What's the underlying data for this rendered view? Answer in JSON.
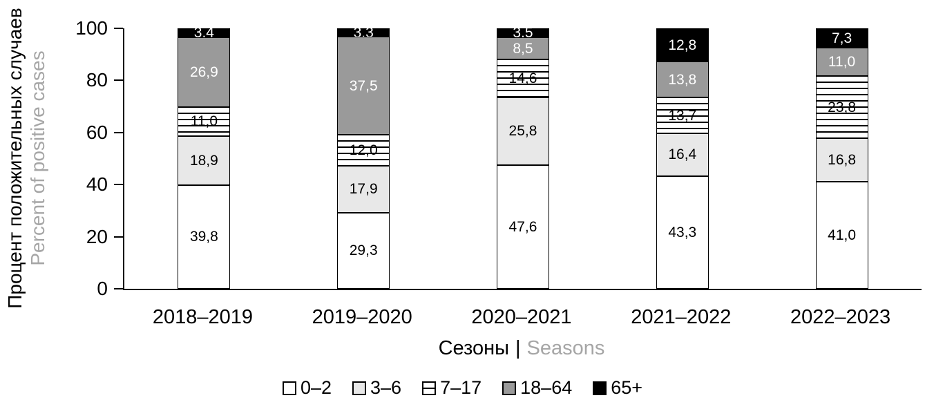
{
  "chart_data": {
    "type": "bar",
    "stacked": true,
    "title": "",
    "categories": [
      "2018–2019",
      "2019–2020",
      "2020–2021",
      "2021–2022",
      "2022–2023"
    ],
    "series": [
      {
        "name": "0–2",
        "swatch": "white",
        "label_color": "#000000",
        "values": [
          39.8,
          29.3,
          47.6,
          43.3,
          41.0
        ],
        "labels": [
          "39,8",
          "29,3",
          "47,6",
          "43,3",
          "41,0"
        ]
      },
      {
        "name": "3–6",
        "swatch": "lightgray",
        "label_color": "#000000",
        "values": [
          18.9,
          17.9,
          25.8,
          16.4,
          16.8
        ],
        "labels": [
          "18,9",
          "17,9",
          "25,8",
          "16,4",
          "16,8"
        ]
      },
      {
        "name": "7–17",
        "swatch": "striped",
        "label_color": "#000000",
        "values": [
          11.0,
          12.0,
          14.6,
          13.7,
          23.8
        ],
        "labels": [
          "11,0",
          "12,0",
          "14,6",
          "13,7",
          "23,8"
        ]
      },
      {
        "name": "18–64",
        "swatch": "darkgray",
        "label_color": "#ffffff",
        "values": [
          26.9,
          37.5,
          8.5,
          13.8,
          11.0
        ],
        "labels": [
          "26,9",
          "37,5",
          "8,5",
          "13,8",
          "11,0"
        ]
      },
      {
        "name": "65+",
        "swatch": "black",
        "label_color": "#ffffff",
        "values": [
          3.4,
          3.3,
          3.5,
          12.8,
          7.3
        ],
        "labels": [
          "3,4",
          "3,3",
          "3,5",
          "12,8",
          "7,3"
        ]
      }
    ],
    "ylabel": {
      "ru": "Процент положительных случаев",
      "en": "Percent of positive cases"
    },
    "xlabel": {
      "ru": "Сезоны",
      "sep": "|",
      "en": "Seasons"
    },
    "yticks": [
      "0",
      "20",
      "40",
      "60",
      "80",
      "100"
    ],
    "ylim": [
      0,
      100
    ],
    "legend_position": "bottom",
    "grid": false
  },
  "colors": {
    "segment_white": "#ffffff",
    "segment_light_gray": "#e8e8e8",
    "segment_dark_gray": "#9a9a9a",
    "segment_black": "#000000",
    "secondary_text_gray": "#a6a6a6",
    "axis_black": "#000000"
  }
}
